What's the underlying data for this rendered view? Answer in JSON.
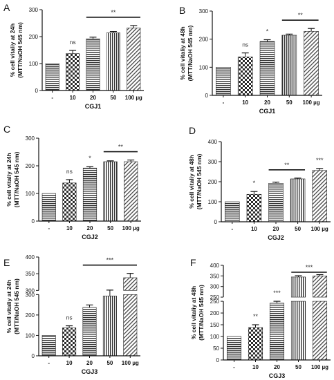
{
  "chart_data": [
    {
      "panel": "A",
      "type": "bar",
      "categories": [
        "-",
        "10",
        "20",
        "50",
        "100 µg"
      ],
      "values": [
        100,
        137,
        192,
        214,
        232
      ],
      "errors": [
        0,
        12,
        6,
        5,
        9
      ],
      "patterns": [
        "hlines",
        "checker",
        "hlines",
        "vlines",
        "diag"
      ],
      "xlabel": "CGJ1",
      "ylabel": "% cell vitaliy at 24h",
      "ylabel2": "(MTT/NaOH 545 nm)",
      "ylim": [
        0,
        300
      ],
      "yticks": [
        "0",
        "100",
        "200",
        "300"
      ],
      "annotations": [
        {
          "text": "ns",
          "bar": 1
        },
        {
          "text": "**",
          "from": 2,
          "to": 4
        }
      ]
    },
    {
      "panel": "B",
      "type": "bar",
      "categories": [
        "-",
        "10",
        "20",
        "50",
        "100 µg"
      ],
      "values": [
        100,
        137,
        192,
        214,
        228
      ],
      "errors": [
        0,
        14,
        6,
        4,
        10
      ],
      "patterns": [
        "hlines",
        "checker",
        "hlines",
        "vlines",
        "diag"
      ],
      "xlabel": "CGJ1",
      "ylabel": "% cell vitaliy at 48h",
      "ylabel2": "(MTT/NaOH 545 nm)",
      "ylim": [
        0,
        300
      ],
      "yticks": [
        "0",
        "100",
        "200",
        "300"
      ],
      "annotations": [
        {
          "text": "ns",
          "bar": 1
        },
        {
          "text": "*",
          "bar": 2
        },
        {
          "text": "**",
          "from": 3,
          "to": 4
        }
      ]
    },
    {
      "panel": "C",
      "type": "bar",
      "categories": [
        "-",
        "10",
        "20",
        "50",
        "100 µg"
      ],
      "values": [
        100,
        138,
        192,
        215,
        215
      ],
      "errors": [
        0,
        12,
        5,
        3,
        6
      ],
      "patterns": [
        "hlines",
        "checker",
        "hlines",
        "vlines",
        "diag"
      ],
      "xlabel": "CGJ2",
      "ylabel": "% cell vitaliy at 24h",
      "ylabel2": "(MTT/NaOH 545 nm)",
      "ylim": [
        0,
        300
      ],
      "yticks": [
        "0",
        "100",
        "200",
        "300"
      ],
      "annotations": [
        {
          "text": "ns",
          "bar": 1
        },
        {
          "text": "*",
          "bar": 2
        },
        {
          "text": "**",
          "from": 3,
          "to": 4
        }
      ]
    },
    {
      "panel": "D",
      "type": "bar",
      "categories": [
        "-",
        "10",
        "20",
        "50",
        "100 µg"
      ],
      "values": [
        100,
        137,
        192,
        214,
        256
      ],
      "errors": [
        0,
        14,
        6,
        4,
        10
      ],
      "patterns": [
        "hlines",
        "checker",
        "hlines",
        "vlines",
        "diag"
      ],
      "xlabel": "CGJ2",
      "ylabel": "% cell vitaliy at 48h",
      "ylabel2": "(MTT/NaOH 545 nm)",
      "ylim": [
        0,
        400
      ],
      "yticks": [
        "0",
        "100",
        "200",
        "300",
        "400"
      ],
      "annotations": [
        {
          "text": "*",
          "bar": 1
        },
        {
          "text": "**",
          "from": 2,
          "to": 3
        },
        {
          "text": "***",
          "bar": 4
        }
      ]
    },
    {
      "panel": "E",
      "type": "bar",
      "categories": [
        "-",
        "10",
        "20",
        "50",
        "100 µg"
      ],
      "values": [
        100,
        137,
        237,
        293,
        338
      ],
      "errors": [
        0,
        10,
        12,
        8,
        13
      ],
      "patterns": [
        "hlines",
        "checker",
        "hlines",
        "vlines",
        "diag"
      ],
      "xlabel": "CGJ3",
      "ylabel": "% cell vitaliy at 24h",
      "ylabel2": "(MTT/NaOH 545 nm)",
      "ylim": [
        0,
        400
      ],
      "axis_break": {
        "lower": [
          0,
          300
        ],
        "upper": [
          300,
          400
        ]
      },
      "yticks_lower": [
        "0",
        "100",
        "200",
        "300"
      ],
      "yticks_upper": [
        "300",
        "350",
        "400"
      ],
      "annotations": [
        {
          "text": "ns",
          "bar": 1
        },
        {
          "text": "***",
          "from": 2,
          "to": 4
        }
      ]
    },
    {
      "panel": "F",
      "type": "bar",
      "categories": [
        "-",
        "10",
        "20",
        "50",
        "100 µg"
      ],
      "values": [
        100,
        138,
        242,
        345,
        350
      ],
      "errors": [
        0,
        12,
        8,
        6,
        6
      ],
      "patterns": [
        "hlines",
        "checker",
        "hlines",
        "vlines",
        "diag"
      ],
      "xlabel": "CGJ3",
      "ylabel": "% cell vitaliy at 48h",
      "ylabel2": "(MTT/NaOH 545 nm)",
      "ylim": [
        0,
        400
      ],
      "axis_break": {
        "lower": [
          0,
          250
        ],
        "upper": [
          250,
          400
        ]
      },
      "yticks_lower": [
        "0",
        "50",
        "100",
        "150",
        "200",
        "250"
      ],
      "yticks_upper": [
        "250",
        "300",
        "350",
        "400"
      ],
      "annotations": [
        {
          "text": "**",
          "bar": 1
        },
        {
          "text": "***",
          "bar": 2
        },
        {
          "text": "***",
          "from": 3,
          "to": 4
        }
      ]
    }
  ]
}
